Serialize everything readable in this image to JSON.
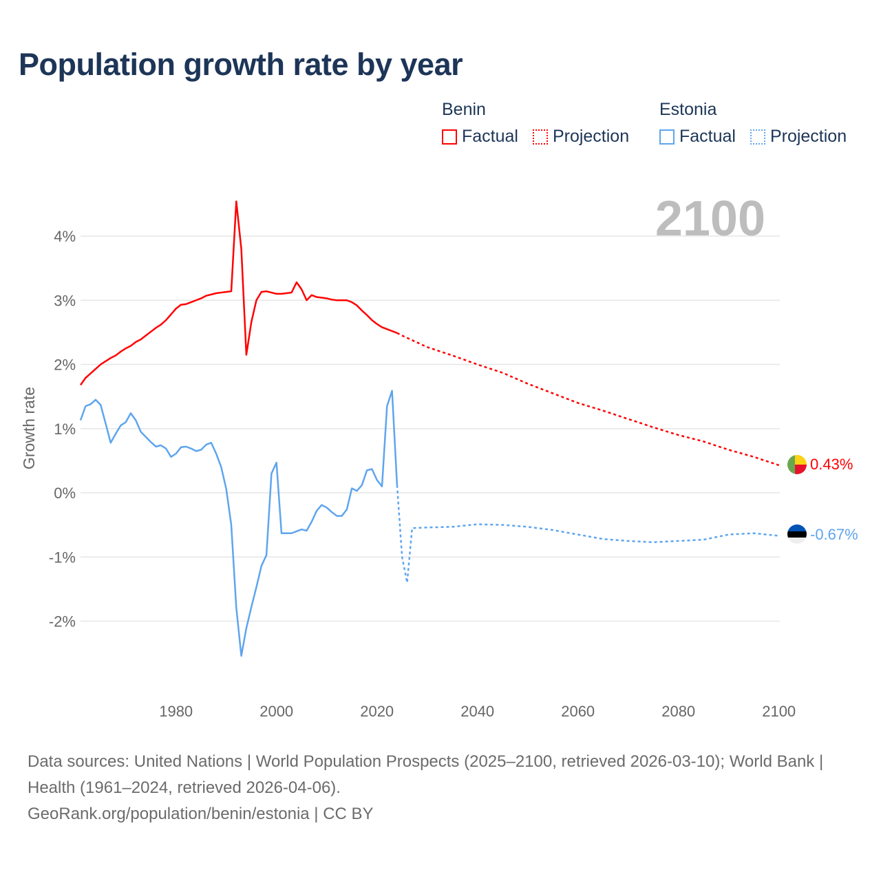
{
  "title": "Population growth rate by year",
  "legend": [
    {
      "name": "Benin",
      "color": "#ff0000",
      "factual": "Factual",
      "projection": "Projection"
    },
    {
      "name": "Estonia",
      "color": "#5ea5ee",
      "factual": "Factual",
      "projection": "Projection"
    }
  ],
  "year_display": "2100",
  "footer": {
    "sources": "Data sources: United Nations | World Population Prospects (2025–2100, retrieved 2026-03-10); World Bank | Health (1961–2024, retrieved 2026-04-06).",
    "attribution": "GeoRank.org/population/benin/estonia | CC BY"
  },
  "chart_data": {
    "type": "line",
    "title": "Population growth rate by year",
    "xlabel": "",
    "ylabel": "Growth rate",
    "xlim": [
      1961,
      2100
    ],
    "ylim": [
      -3,
      4.6
    ],
    "x_ticks": [
      1980,
      2000,
      2020,
      2040,
      2060,
      2080,
      2100
    ],
    "x_tick_labels": [
      "1980",
      "2000",
      "2020",
      "2040",
      "2060",
      "2080",
      "2100"
    ],
    "y_ticks": [
      4,
      3,
      2,
      1,
      0,
      -1,
      -2
    ],
    "y_tick_labels": [
      "4%",
      "3%",
      "2%",
      "1%",
      "0%",
      "-1%",
      "-2%"
    ],
    "grid": true,
    "legend_position": "top-right",
    "series": [
      {
        "name": "Benin",
        "color": "#ff0000",
        "factual_start": 1961,
        "factual": [
          1.68,
          1.79,
          1.86,
          1.93,
          2.0,
          2.05,
          2.1,
          2.14,
          2.2,
          2.25,
          2.29,
          2.35,
          2.39,
          2.45,
          2.51,
          2.57,
          2.62,
          2.69,
          2.78,
          2.87,
          2.93,
          2.94,
          2.97,
          3.0,
          3.03,
          3.07,
          3.09,
          3.11,
          3.12,
          3.13,
          3.14,
          4.54,
          3.8,
          2.15,
          2.66,
          3.0,
          3.13,
          3.14,
          3.12,
          3.1,
          3.1,
          3.11,
          3.12,
          3.28,
          3.17,
          3.0,
          3.08,
          3.05,
          3.04,
          3.03,
          3.01,
          3.0,
          3.0,
          3.0,
          2.97,
          2.92,
          2.84,
          2.77,
          2.69,
          2.63,
          2.58,
          2.55,
          2.52,
          2.49
        ],
        "projection_x": [
          2024,
          2025,
          2030,
          2035,
          2040,
          2045,
          2050,
          2055,
          2060,
          2065,
          2070,
          2075,
          2080,
          2085,
          2090,
          2095,
          2100
        ],
        "projection": [
          2.49,
          2.45,
          2.27,
          2.14,
          2.0,
          1.87,
          1.7,
          1.55,
          1.4,
          1.28,
          1.15,
          1.02,
          0.9,
          0.8,
          0.67,
          0.56,
          0.43
        ],
        "end_label": "0.43%"
      },
      {
        "name": "Estonia",
        "color": "#5ea5ee",
        "factual_start": 1961,
        "factual": [
          1.13,
          1.35,
          1.38,
          1.45,
          1.37,
          1.08,
          0.78,
          0.92,
          1.05,
          1.1,
          1.24,
          1.13,
          0.95,
          0.87,
          0.79,
          0.72,
          0.74,
          0.69,
          0.56,
          0.61,
          0.71,
          0.72,
          0.69,
          0.65,
          0.67,
          0.75,
          0.78,
          0.61,
          0.4,
          0.06,
          -0.5,
          -1.79,
          -2.54,
          -2.11,
          -1.78,
          -1.47,
          -1.14,
          -0.97,
          0.3,
          0.47,
          -0.63,
          -0.63,
          -0.63,
          -0.6,
          -0.57,
          -0.59,
          -0.45,
          -0.28,
          -0.19,
          -0.23,
          -0.3,
          -0.36,
          -0.36,
          -0.26,
          0.07,
          0.03,
          0.12,
          0.35,
          0.37,
          0.2,
          0.1,
          1.35,
          1.59,
          0.12
        ],
        "projection_x": [
          2024,
          2025,
          2026,
          2027,
          2030,
          2035,
          2040,
          2045,
          2050,
          2055,
          2060,
          2065,
          2070,
          2075,
          2080,
          2085,
          2090,
          2095,
          2100
        ],
        "projection": [
          0.12,
          -1.0,
          -1.4,
          -0.55,
          -0.54,
          -0.53,
          -0.49,
          -0.5,
          -0.53,
          -0.58,
          -0.65,
          -0.72,
          -0.75,
          -0.77,
          -0.75,
          -0.73,
          -0.65,
          -0.63,
          -0.67
        ],
        "end_label": "-0.67%"
      }
    ]
  }
}
